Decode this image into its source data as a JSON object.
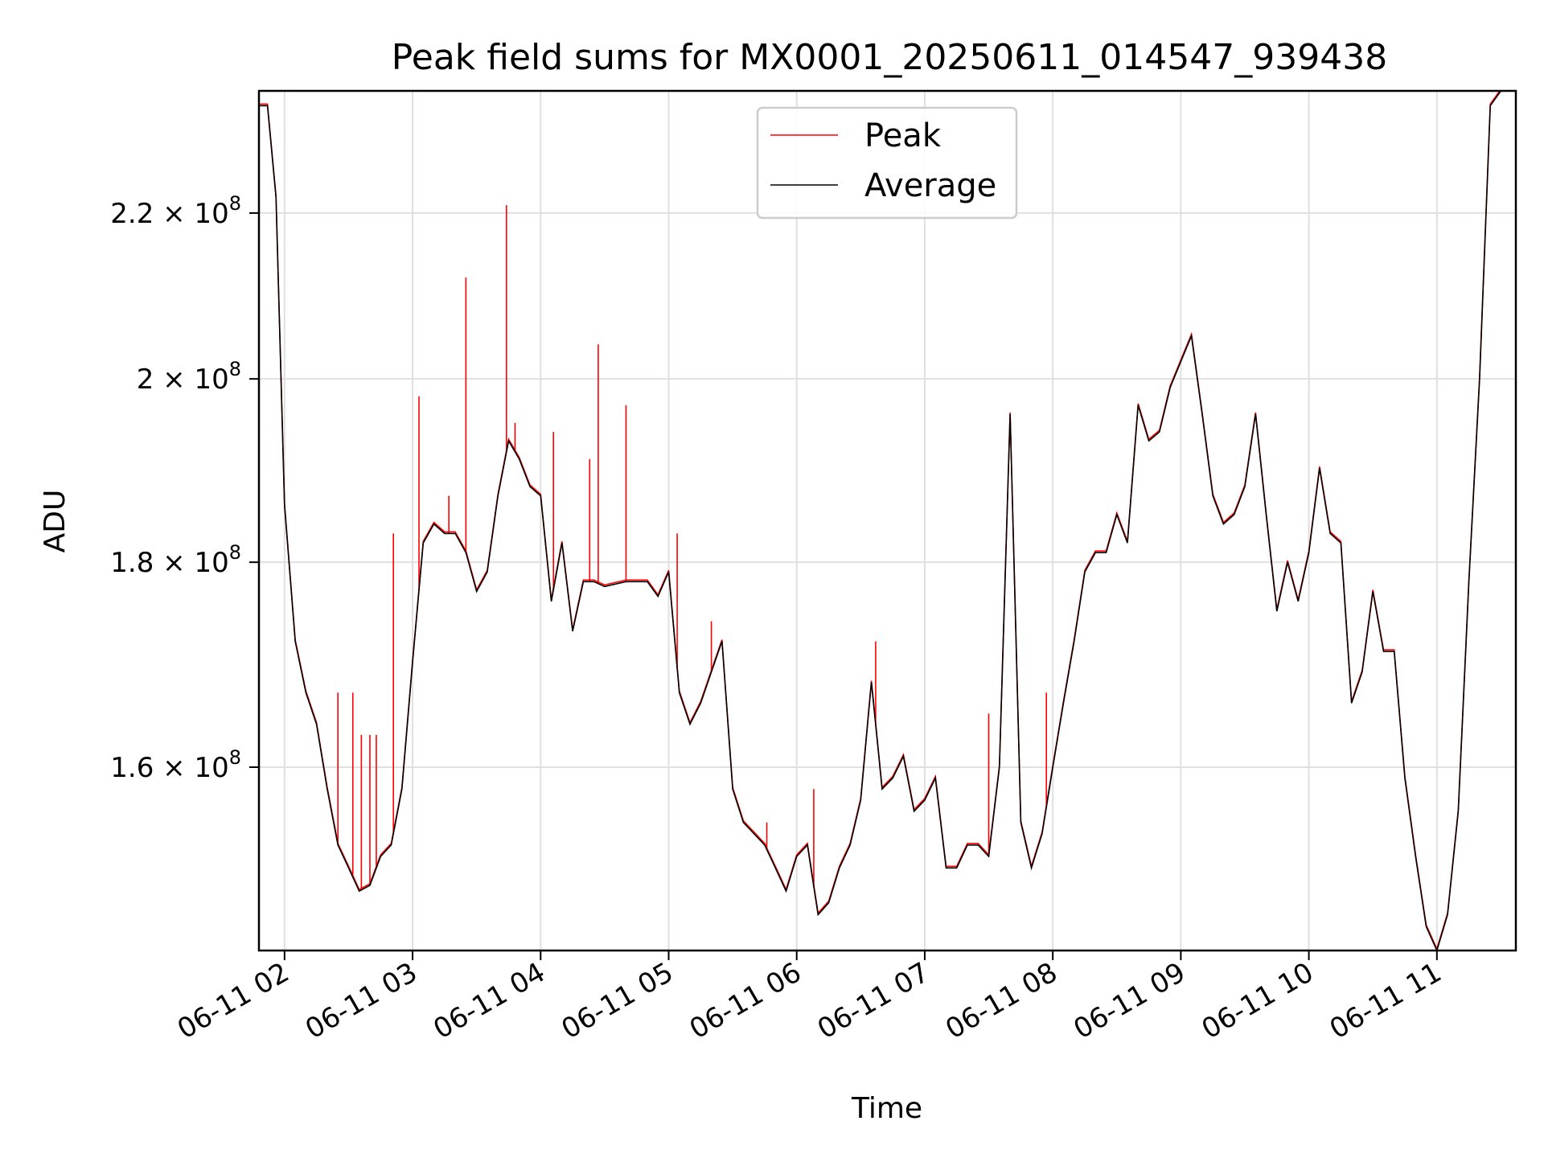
{
  "chart_data": {
    "type": "line",
    "title": "Peak field sums for MX0001_20250611_014547_939438",
    "xlabel": "Time",
    "ylabel": "ADU",
    "y_scale": "log",
    "xlim": [
      "06-11 01:48",
      "06-11 11:37"
    ],
    "ylim": [
      144000000,
      236000000
    ],
    "grid": true,
    "legend_position": "top-center",
    "x_ticks": [
      "06-11 02",
      "06-11 03",
      "06-11 04",
      "06-11 05",
      "06-11 06",
      "06-11 07",
      "06-11 08",
      "06-11 09",
      "06-11 10",
      "06-11 11"
    ],
    "y_ticks": [
      {
        "value": 160000000,
        "mantissa": "1.6",
        "exp": "8"
      },
      {
        "value": 180000000,
        "mantissa": "1.8",
        "exp": "8"
      },
      {
        "value": 200000000,
        "mantissa": "2",
        "exp": "8"
      },
      {
        "value": 220000000,
        "mantissa": "2.2",
        "exp": "8"
      }
    ],
    "series": [
      {
        "name": "Average",
        "color": "#000000",
        "x": [
          "06-11 01:48",
          "06-11 01:52",
          "06-11 01:56",
          "06-11 02:00",
          "06-11 02:05",
          "06-11 02:10",
          "06-11 02:15",
          "06-11 02:20",
          "06-11 02:25",
          "06-11 02:30",
          "06-11 02:35",
          "06-11 02:40",
          "06-11 02:45",
          "06-11 02:50",
          "06-11 02:55",
          "06-11 03:00",
          "06-11 03:05",
          "06-11 03:10",
          "06-11 03:15",
          "06-11 03:20",
          "06-11 03:25",
          "06-11 03:30",
          "06-11 03:35",
          "06-11 03:40",
          "06-11 03:45",
          "06-11 03:50",
          "06-11 03:55",
          "06-11 04:00",
          "06-11 04:05",
          "06-11 04:10",
          "06-11 04:15",
          "06-11 04:20",
          "06-11 04:25",
          "06-11 04:30",
          "06-11 04:40",
          "06-11 04:50",
          "06-11 04:55",
          "06-11 05:00",
          "06-11 05:05",
          "06-11 05:10",
          "06-11 05:15",
          "06-11 05:20",
          "06-11 05:25",
          "06-11 05:30",
          "06-11 05:35",
          "06-11 05:40",
          "06-11 05:45",
          "06-11 05:50",
          "06-11 05:55",
          "06-11 06:00",
          "06-11 06:05",
          "06-11 06:10",
          "06-11 06:15",
          "06-11 06:20",
          "06-11 06:25",
          "06-11 06:30",
          "06-11 06:35",
          "06-11 06:40",
          "06-11 06:45",
          "06-11 06:50",
          "06-11 06:55",
          "06-11 07:00",
          "06-11 07:05",
          "06-11 07:10",
          "06-11 07:15",
          "06-11 07:20",
          "06-11 07:25",
          "06-11 07:30",
          "06-11 07:35",
          "06-11 07:40",
          "06-11 07:45",
          "06-11 07:50",
          "06-11 07:55",
          "06-11 08:00",
          "06-11 08:05",
          "06-11 08:10",
          "06-11 08:15",
          "06-11 08:20",
          "06-11 08:25",
          "06-11 08:30",
          "06-11 08:35",
          "06-11 08:40",
          "06-11 08:45",
          "06-11 08:50",
          "06-11 08:55",
          "06-11 09:00",
          "06-11 09:05",
          "06-11 09:10",
          "06-11 09:15",
          "06-11 09:20",
          "06-11 09:25",
          "06-11 09:30",
          "06-11 09:35",
          "06-11 09:40",
          "06-11 09:45",
          "06-11 09:50",
          "06-11 09:55",
          "06-11 10:00",
          "06-11 10:05",
          "06-11 10:10",
          "06-11 10:15",
          "06-11 10:20",
          "06-11 10:25",
          "06-11 10:30",
          "06-11 10:35",
          "06-11 10:40",
          "06-11 10:45",
          "06-11 10:50",
          "06-11 10:55",
          "06-11 11:00",
          "06-11 11:05",
          "06-11 11:10",
          "06-11 11:15",
          "06-11 11:20",
          "06-11 11:25",
          "06-11 11:30",
          "06-11 11:37"
        ],
        "values": [
          234000000,
          234000000,
          222000000,
          186000000,
          172000000,
          167000000,
          164000000,
          158000000,
          153000000,
          151000000,
          149000000,
          149500000,
          152000000,
          153000000,
          158000000,
          170000000,
          182000000,
          184000000,
          183000000,
          183000000,
          181000000,
          177000000,
          179000000,
          187000000,
          193000000,
          191000000,
          188000000,
          187000000,
          176000000,
          182000000,
          173000000,
          178000000,
          178000000,
          177500000,
          178000000,
          178000000,
          176500000,
          179000000,
          167000000,
          164000000,
          166000000,
          169000000,
          172000000,
          158000000,
          155000000,
          154000000,
          153000000,
          151000000,
          149000000,
          152000000,
          153000000,
          147000000,
          148000000,
          151000000,
          153000000,
          157000000,
          168000000,
          158000000,
          159000000,
          161000000,
          156000000,
          157000000,
          159000000,
          151000000,
          151000000,
          153000000,
          153000000,
          152000000,
          160000000,
          196000000,
          155000000,
          151000000,
          154000000,
          160000000,
          166000000,
          172000000,
          179000000,
          181000000,
          181000000,
          185000000,
          182000000,
          197000000,
          193000000,
          194000000,
          199000000,
          202000000,
          205000000,
          196000000,
          187000000,
          184000000,
          185000000,
          188000000,
          196000000,
          185000000,
          175000000,
          180000000,
          176000000,
          181000000,
          190000000,
          183000000,
          182000000,
          166000000,
          169000000,
          177000000,
          171000000,
          171000000,
          159000000,
          152000000,
          146000000,
          144000000,
          147000000,
          156000000,
          178000000,
          200000000,
          234000000,
          236000000,
          236000000
        ]
      },
      {
        "name": "Peak",
        "color": "#ff0000",
        "spikes": [
          {
            "t": "06-11 02:25",
            "value": 167000000
          },
          {
            "t": "06-11 02:32",
            "value": 167000000
          },
          {
            "t": "06-11 02:36",
            "value": 163000000
          },
          {
            "t": "06-11 02:40",
            "value": 163000000
          },
          {
            "t": "06-11 02:43",
            "value": 163000000
          },
          {
            "t": "06-11 02:51",
            "value": 183000000
          },
          {
            "t": "06-11 03:03",
            "value": 198000000
          },
          {
            "t": "06-11 03:17",
            "value": 187000000
          },
          {
            "t": "06-11 03:25",
            "value": 212000000
          },
          {
            "t": "06-11 03:44",
            "value": 221000000
          },
          {
            "t": "06-11 03:48",
            "value": 195000000
          },
          {
            "t": "06-11 04:06",
            "value": 194000000
          },
          {
            "t": "06-11 04:23",
            "value": 191000000
          },
          {
            "t": "06-11 04:27",
            "value": 204000000
          },
          {
            "t": "06-11 04:40",
            "value": 197000000
          },
          {
            "t": "06-11 05:04",
            "value": 183000000
          },
          {
            "t": "06-11 05:20",
            "value": 174000000
          },
          {
            "t": "06-11 05:46",
            "value": 155000000
          },
          {
            "t": "06-11 06:08",
            "value": 158000000
          },
          {
            "t": "06-11 06:37",
            "value": 172000000
          },
          {
            "t": "06-11 07:30",
            "value": 165000000
          },
          {
            "t": "06-11 07:57",
            "value": 167000000
          }
        ]
      }
    ]
  }
}
